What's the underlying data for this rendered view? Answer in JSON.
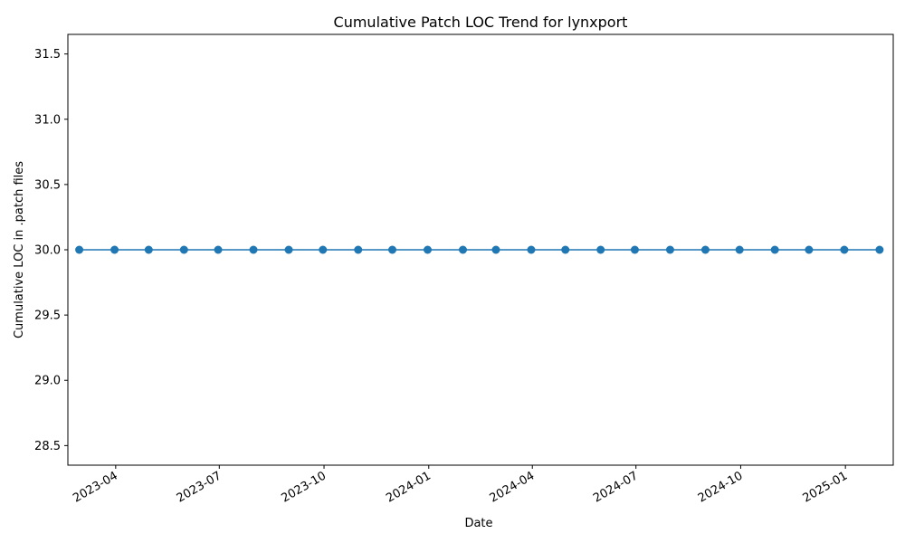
{
  "chart_data": {
    "type": "line",
    "title": "Cumulative Patch LOC Trend for lynxport",
    "xlabel": "Date",
    "ylabel": "Cumulative LOC in .patch files",
    "x_ticks": [
      "2023-04",
      "2023-07",
      "2023-10",
      "2024-01",
      "2024-04",
      "2024-07",
      "2024-10",
      "2025-01"
    ],
    "y_ticks": [
      28.5,
      29.0,
      29.5,
      30.0,
      30.5,
      31.0,
      31.5
    ],
    "xlim": [
      "2023-02-18",
      "2025-02-12"
    ],
    "ylim": [
      28.35,
      31.65
    ],
    "grid": false,
    "series": [
      {
        "color": "#1f77b4",
        "marker": "circle",
        "x": [
          "2023-02-28",
          "2023-03-31",
          "2023-04-30",
          "2023-05-31",
          "2023-06-30",
          "2023-07-31",
          "2023-08-31",
          "2023-09-30",
          "2023-10-31",
          "2023-11-30",
          "2023-12-31",
          "2024-01-31",
          "2024-02-29",
          "2024-03-31",
          "2024-04-30",
          "2024-05-31",
          "2024-06-30",
          "2024-07-31",
          "2024-08-31",
          "2024-09-30",
          "2024-10-31",
          "2024-11-30",
          "2024-12-31",
          "2025-01-31"
        ],
        "y": [
          30,
          30,
          30,
          30,
          30,
          30,
          30,
          30,
          30,
          30,
          30,
          30,
          30,
          30,
          30,
          30,
          30,
          30,
          30,
          30,
          30,
          30,
          30,
          30
        ]
      }
    ]
  }
}
